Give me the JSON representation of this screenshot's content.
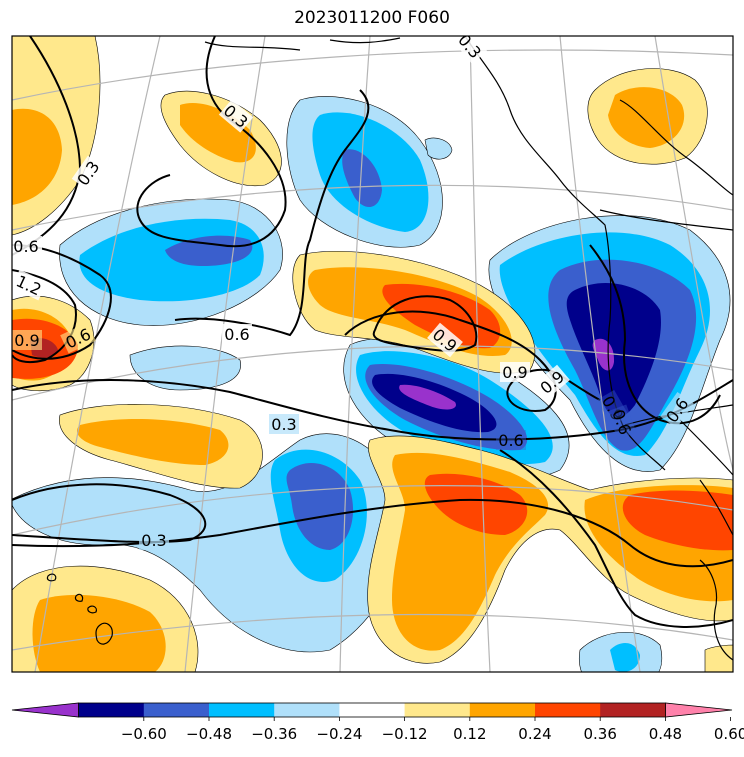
{
  "chart_data": {
    "type": "heatmap",
    "title": "2023011200 F060",
    "colorbar": {
      "extend": "both",
      "levels": [
        -0.6,
        -0.48,
        -0.36,
        -0.24,
        -0.12,
        0.12,
        0.24,
        0.36,
        0.48,
        0.6
      ],
      "tick_labels": [
        "−0.60",
        "−0.48",
        "−0.36",
        "−0.24",
        "−0.12",
        "0.12",
        "0.24",
        "0.36",
        "0.48",
        "0.60"
      ],
      "colors": {
        "below": "#9932cc",
        "bins": [
          "#00008b",
          "#3a5fcd",
          "#00bfff",
          "#b0e0fa",
          "#ffffff",
          "#ffe88c",
          "#ffa500",
          "#ff4500",
          "#b22222"
        ],
        "above": "#ff82ab"
      }
    },
    "contour_labels": [
      "0.3",
      "0.3",
      "0.6",
      "1.2",
      "0.9",
      "0.6",
      "0.6",
      "0.9",
      "0.9",
      "0.9",
      "0.3",
      "0.6",
      "0.3",
      "0.9",
      "0.6",
      "0.3",
      "0.6"
    ],
    "contour_color": "#000000",
    "coastline_color": "#000000",
    "gridline_color": "#b5b5b5"
  }
}
